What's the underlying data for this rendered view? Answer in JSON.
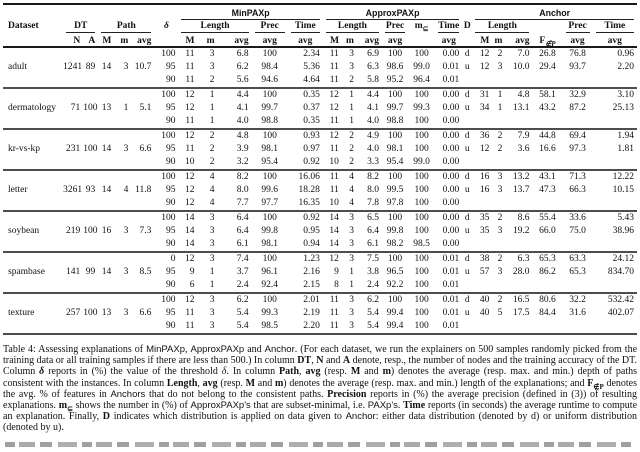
{
  "table": {
    "header": {
      "dataset": "Dataset",
      "dt": "DT",
      "n": "N",
      "a": "A",
      "path": "Path",
      "M": "M",
      "m": "m",
      "avg": "avg",
      "delta": "δ",
      "minpaxp": "MinPAXp",
      "approxpaxp": "ApproxPAXp",
      "anchor": "Anchor",
      "length": "Length",
      "prec": "Prec",
      "time": "Time",
      "m_subset_base": "m",
      "m_subset_mark": "⊆",
      "d": "D",
      "f_base": "F",
      "f_mark": "∉P"
    },
    "groups": [
      {
        "dataset": "adult",
        "n": "1241",
        "a": "89",
        "path": [
          "14",
          "3",
          "10.7"
        ],
        "rows": [
          {
            "delta": "100",
            "min": [
              "11",
              "3",
              "6.8",
              "100",
              "2.34"
            ],
            "approx": [
              "11",
              "3",
              "6.9",
              "100",
              "100",
              "0.00"
            ],
            "d": "d",
            "anchor": [
              "12",
              "2",
              "7.0",
              "26.8",
              "76.8",
              "0.96"
            ]
          },
          {
            "delta": "95",
            "min": [
              "11",
              "3",
              "6.2",
              "98.4",
              "5.36"
            ],
            "approx": [
              "11",
              "3",
              "6.3",
              "98.6",
              "99.0",
              "0.01"
            ],
            "d": "u",
            "anchor": [
              "12",
              "3",
              "10.0",
              "29.4",
              "93.7",
              "2.20"
            ]
          },
          {
            "delta": "90",
            "min": [
              "11",
              "2",
              "5.6",
              "94.6",
              "4.64"
            ],
            "approx": [
              "11",
              "2",
              "5.8",
              "95.2",
              "96.4",
              "0.01"
            ],
            "d": "",
            "anchor": []
          }
        ]
      },
      {
        "dataset": "dermatology",
        "n": "71",
        "a": "100",
        "path": [
          "13",
          "1",
          "5.1"
        ],
        "rows": [
          {
            "delta": "100",
            "min": [
              "12",
              "1",
              "4.4",
              "100",
              "0.35"
            ],
            "approx": [
              "12",
              "1",
              "4.4",
              "100",
              "100",
              "0.00"
            ],
            "d": "d",
            "anchor": [
              "31",
              "1",
              "4.8",
              "58.1",
              "32.9",
              "3.10"
            ]
          },
          {
            "delta": "95",
            "min": [
              "12",
              "1",
              "4.1",
              "99.7",
              "0.37"
            ],
            "approx": [
              "12",
              "1",
              "4.1",
              "99.7",
              "99.3",
              "0.00"
            ],
            "d": "u",
            "anchor": [
              "34",
              "1",
              "13.1",
              "43.2",
              "87.2",
              "25.13"
            ]
          },
          {
            "delta": "90",
            "min": [
              "11",
              "1",
              "4.0",
              "98.8",
              "0.35"
            ],
            "approx": [
              "11",
              "1",
              "4.0",
              "98.8",
              "100",
              "0.00"
            ],
            "d": "",
            "anchor": []
          }
        ]
      },
      {
        "dataset": "kr-vs-kp",
        "n": "231",
        "a": "100",
        "path": [
          "14",
          "3",
          "6.6"
        ],
        "rows": [
          {
            "delta": "100",
            "min": [
              "12",
              "2",
              "4.8",
              "100",
              "0.93"
            ],
            "approx": [
              "12",
              "2",
              "4.9",
              "100",
              "100",
              "0.00"
            ],
            "d": "d",
            "anchor": [
              "36",
              "2",
              "7.9",
              "44.8",
              "69.4",
              "1.94"
            ]
          },
          {
            "delta": "95",
            "min": [
              "11",
              "2",
              "3.9",
              "98.1",
              "0.97"
            ],
            "approx": [
              "11",
              "2",
              "4.0",
              "98.1",
              "100",
              "0.00"
            ],
            "d": "u",
            "anchor": [
              "12",
              "2",
              "3.6",
              "16.6",
              "97.3",
              "1.81"
            ]
          },
          {
            "delta": "90",
            "min": [
              "10",
              "2",
              "3.2",
              "95.4",
              "0.92"
            ],
            "approx": [
              "10",
              "2",
              "3.3",
              "95.4",
              "99.0",
              "0.00"
            ],
            "d": "",
            "anchor": []
          }
        ]
      },
      {
        "dataset": "letter",
        "n": "3261",
        "a": "93",
        "path": [
          "14",
          "4",
          "11.8"
        ],
        "rows": [
          {
            "delta": "100",
            "min": [
              "12",
              "4",
              "8.2",
              "100",
              "16.06"
            ],
            "approx": [
              "11",
              "4",
              "8.2",
              "100",
              "100",
              "0.00"
            ],
            "d": "d",
            "anchor": [
              "16",
              "3",
              "13.2",
              "43.1",
              "71.3",
              "12.22"
            ]
          },
          {
            "delta": "95",
            "min": [
              "12",
              "4",
              "8.0",
              "99.6",
              "18.28"
            ],
            "approx": [
              "11",
              "4",
              "8.0",
              "99.5",
              "100",
              "0.00"
            ],
            "d": "u",
            "anchor": [
              "16",
              "3",
              "13.7",
              "47.3",
              "66.3",
              "10.15"
            ]
          },
          {
            "delta": "90",
            "min": [
              "12",
              "4",
              "7.7",
              "97.7",
              "16.35"
            ],
            "approx": [
              "10",
              "4",
              "7.8",
              "97.8",
              "100",
              "0.00"
            ],
            "d": "",
            "anchor": []
          }
        ]
      },
      {
        "dataset": "soybean",
        "n": "219",
        "a": "100",
        "path": [
          "16",
          "3",
          "7.3"
        ],
        "rows": [
          {
            "delta": "100",
            "min": [
              "14",
              "3",
              "6.4",
              "100",
              "0.92"
            ],
            "approx": [
              "14",
              "3",
              "6.5",
              "100",
              "100",
              "0.00"
            ],
            "d": "d",
            "anchor": [
              "35",
              "2",
              "8.6",
              "55.4",
              "33.6",
              "5.43"
            ]
          },
          {
            "delta": "95",
            "min": [
              "14",
              "3",
              "6.4",
              "99.8",
              "0.95"
            ],
            "approx": [
              "14",
              "3",
              "6.4",
              "99.8",
              "100",
              "0.00"
            ],
            "d": "u",
            "anchor": [
              "35",
              "3",
              "19.2",
              "66.0",
              "75.0",
              "38.96"
            ]
          },
          {
            "delta": "90",
            "min": [
              "14",
              "3",
              "6.1",
              "98.1",
              "0.94"
            ],
            "approx": [
              "14",
              "3",
              "6.1",
              "98.2",
              "98.5",
              "0.00"
            ],
            "d": "",
            "anchor": []
          }
        ]
      },
      {
        "dataset": "spambase",
        "n": "141",
        "a": "99",
        "path": [
          "14",
          "3",
          "8.5"
        ],
        "rows": [
          {
            "delta": "0",
            "min": [
              "12",
              "3",
              "7.4",
              "100",
              "1.23"
            ],
            "approx": [
              "12",
              "3",
              "7.5",
              "100",
              "100",
              "0.01"
            ],
            "d": "d",
            "anchor": [
              "38",
              "2",
              "6.3",
              "65.3",
              "63.3",
              "24.12"
            ]
          },
          {
            "delta": "95",
            "min": [
              "9",
              "1",
              "3.7",
              "96.1",
              "2.16"
            ],
            "approx": [
              "9",
              "1",
              "3.8",
              "96.5",
              "100",
              "0.01"
            ],
            "d": "u",
            "anchor": [
              "57",
              "3",
              "28.0",
              "86.2",
              "65.3",
              "834.70"
            ]
          },
          {
            "delta": "90",
            "min": [
              "6",
              "1",
              "2.4",
              "92.4",
              "2.15"
            ],
            "approx": [
              "8",
              "1",
              "2.4",
              "92.2",
              "100",
              "0.01"
            ],
            "d": "",
            "anchor": []
          }
        ]
      },
      {
        "dataset": "texture",
        "n": "257",
        "a": "100",
        "path": [
          "13",
          "3",
          "6.6"
        ],
        "rows": [
          {
            "delta": "100",
            "min": [
              "12",
              "3",
              "6.2",
              "100",
              "2.01"
            ],
            "approx": [
              "11",
              "3",
              "6.2",
              "100",
              "100",
              "0.01"
            ],
            "d": "d",
            "anchor": [
              "40",
              "2",
              "16.5",
              "80.6",
              "32.2",
              "532.42"
            ]
          },
          {
            "delta": "95",
            "min": [
              "11",
              "3",
              "5.4",
              "99.3",
              "2.19"
            ],
            "approx": [
              "11",
              "3",
              "5.4",
              "99.4",
              "100",
              "0.01"
            ],
            "d": "u",
            "anchor": [
              "40",
              "5",
              "17.5",
              "84.4",
              "31.6",
              "402.07"
            ]
          },
          {
            "delta": "90",
            "min": [
              "11",
              "3",
              "5.4",
              "98.5",
              "2.20"
            ],
            "approx": [
              "11",
              "3",
              "5.4",
              "99.4",
              "100",
              "0.01"
            ],
            "d": "",
            "anchor": []
          }
        ]
      }
    ]
  },
  "caption": {
    "segments": [
      {
        "t": "Table 4: Assessing explanations of "
      },
      {
        "t": "MinPAXp",
        "s": 1
      },
      {
        "t": ", "
      },
      {
        "t": "ApproxPAXp",
        "s": 1
      },
      {
        "t": " and "
      },
      {
        "t": "Anchor",
        "s": 1
      },
      {
        "t": ". (For each dataset, we run the explainers on 500 samples randomly picked from the training data or all training samples if there are less than 500.) In column "
      },
      {
        "t": "DT",
        "b": 1
      },
      {
        "t": ", "
      },
      {
        "t": "N",
        "b": 1
      },
      {
        "t": " and "
      },
      {
        "t": "A",
        "b": 1
      },
      {
        "t": " denote, resp., the number of nodes and the training accuracy of the DT. Column "
      },
      {
        "t": "δ",
        "b": 1,
        "i": 1
      },
      {
        "t": " reports in (%) the value of the threshold "
      },
      {
        "t": "δ",
        "i": 1
      },
      {
        "t": ". In column "
      },
      {
        "t": "Path",
        "b": 1
      },
      {
        "t": ", "
      },
      {
        "t": "avg",
        "b": 1
      },
      {
        "t": " (resp. "
      },
      {
        "t": "M",
        "b": 1
      },
      {
        "t": " and "
      },
      {
        "t": "m",
        "b": 1
      },
      {
        "t": ") denotes the average (resp. max. and min.) depth of paths consistent with the instances. In column "
      },
      {
        "t": "Length",
        "b": 1
      },
      {
        "t": ", "
      },
      {
        "t": "avg",
        "b": 1
      },
      {
        "t": " (resp. "
      },
      {
        "t": "M",
        "b": 1
      },
      {
        "t": " and "
      },
      {
        "t": "m",
        "b": 1
      },
      {
        "t": ") denotes the average (resp. max. and min.) length of the explanations; and "
      },
      {
        "t": "F",
        "b": 1
      },
      {
        "t": "∉P",
        "b": 1,
        "sub": 1
      },
      {
        "t": " denotes the avg. % of features in "
      },
      {
        "t": "Anchors",
        "s": 1
      },
      {
        "t": " that do not belong to the consistent paths. "
      },
      {
        "t": "Precision",
        "b": 1
      },
      {
        "t": " reports in (%) the average precision (defined in (3)) of resulting explanations. "
      },
      {
        "t": "m",
        "b": 1
      },
      {
        "t": "⊆",
        "b": 1,
        "sub": 1
      },
      {
        "t": " shows the number in (%) of "
      },
      {
        "t": "ApproxPAXp's",
        "s": 1
      },
      {
        "t": " that are subset-minimal, i.e. "
      },
      {
        "t": "PAXp's",
        "s": 1
      },
      {
        "t": ". "
      },
      {
        "t": "Time",
        "b": 1
      },
      {
        "t": " reports (in seconds) the average runtime to compute an explanation. Finally, "
      },
      {
        "t": "D",
        "b": 1
      },
      {
        "t": " indicates which distribution is applied on data given to "
      },
      {
        "t": "Anchor",
        "s": 1
      },
      {
        "t": ": either data distribution (denoted by d) or uniform distribution (denoted by u)."
      }
    ]
  }
}
